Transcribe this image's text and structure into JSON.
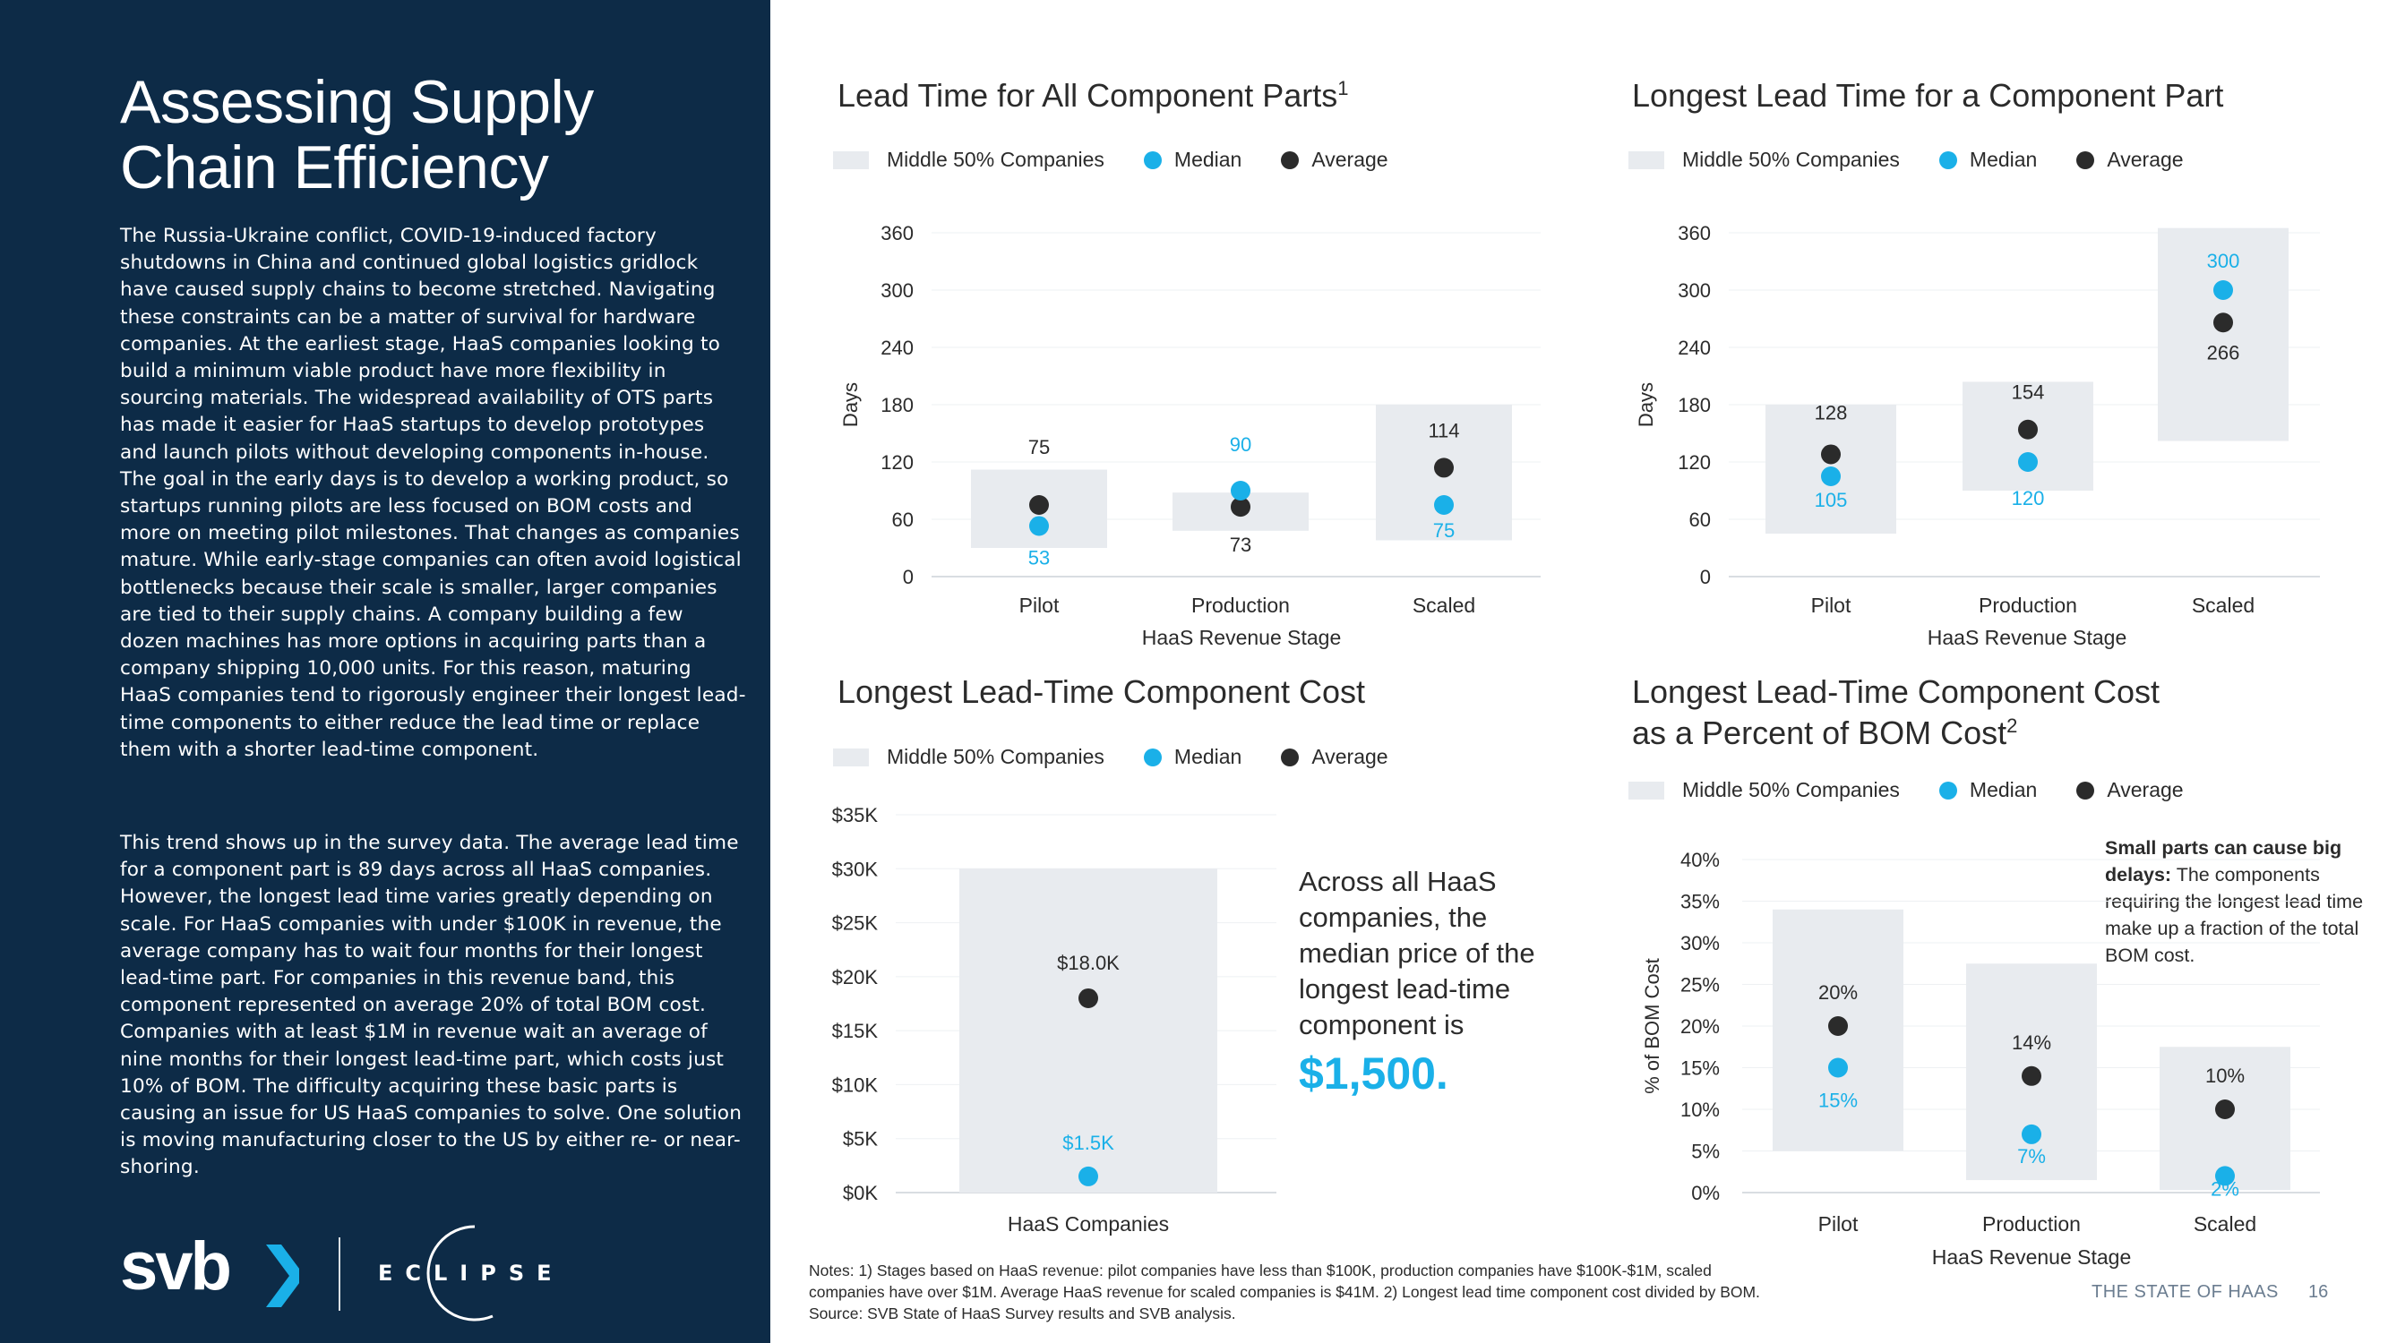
{
  "page": {
    "title": "Assessing Supply Chain Efficiency",
    "paragraphs": [
      "The Russia-Ukraine conflict, COVID-19-induced factory shutdowns in China and continued global logistics gridlock have caused supply chains to become stretched. Navigating these constraints can be a matter of survival for hardware companies. At the earliest stage, HaaS companies looking to build a minimum viable product have more flexibility in sourcing materials. The widespread availability of OTS parts has made it easier for HaaS startups to develop prototypes and launch pilots without developing components in-house. The goal in the early days is to develop a working product, so startups running pilots are less focused on BOM costs and more on meeting pilot milestones. That changes as companies mature. While early-stage companies can often avoid logistical bottlenecks because their scale is smaller, larger companies are tied to their supply chains. A company building a few dozen machines has more options in acquiring parts than a company shipping 10,000 units. For this reason, maturing HaaS companies tend to rigorously engineer their longest lead-time components to either reduce the lead time or replace them with a shorter lead-time component.",
      "This trend shows up in the survey data. The average lead time for a component part is 89 days across all HaaS companies. However, the longest lead time varies greatly depending on scale. For HaaS companies with under $100K in revenue, the average company has to wait four months for their longest lead-time part. For companies in this revenue band, this component represented on average 20% of total BOM cost. Companies with at least $1M in revenue wait an average of nine months for their longest lead-time part, which costs just 10% of BOM. The difficulty acquiring these basic parts is causing an issue for US HaaS companies to solve. One solution is moving manufacturing closer to the US by either re- or near-shoring."
    ],
    "logo_text": "svb",
    "partner_logo": "ECLIPSE",
    "footnote_lines": [
      "Notes: 1) Stages based on HaaS revenue: pilot companies have less than $100K, production companies have $100K-$1M, scaled",
      "companies have over $1M. Average HaaS revenue for scaled companies is $41M.  2) Longest lead time component cost divided by BOM.",
      "Source: SVB State of HaaS Survey results and SVB analysis."
    ],
    "footer_label": "THE STATE OF HAAS",
    "page_number": "16"
  },
  "legend": {
    "band": "Middle 50% Companies",
    "median": "Median",
    "average": "Average"
  },
  "colors": {
    "sidebar": "#0d2b47",
    "band": "#e8ebef",
    "median": "#1ab0e8",
    "average": "#2b2b2b",
    "axis": "#d9dde2"
  },
  "callout": {
    "text": "Across all HaaS companies, the median price of the longest lead-time component is",
    "value": "$1,500."
  },
  "side_note": {
    "bold": "Small parts can cause big delays:",
    "text": " The components requiring the longest lead time make up a fraction of the total BOM cost."
  },
  "chart_data": [
    {
      "type": "range-dot",
      "title": "Lead Time for All Component Parts",
      "title_sup": "1",
      "ylabel": "Days",
      "xlabel": "HaaS Revenue Stage",
      "ylim": [
        0,
        360
      ],
      "yticks": [
        "0",
        "60",
        "120",
        "180",
        "240",
        "300",
        "360"
      ],
      "ytick_values": [
        0,
        60,
        120,
        180,
        240,
        300,
        360
      ],
      "categories": [
        "Pilot",
        "Production",
        "Scaled"
      ],
      "band_low": [
        30,
        48,
        38
      ],
      "band_high": [
        112,
        88,
        180
      ],
      "median": [
        53,
        90,
        75
      ],
      "average": [
        75,
        73,
        114
      ],
      "median_labels": [
        "53",
        "90",
        "75"
      ],
      "average_labels": [
        "75",
        "73",
        "114"
      ]
    },
    {
      "type": "range-dot",
      "title": "Longest Lead Time for a Component Part",
      "ylabel": "Days",
      "xlabel": "HaaS Revenue Stage",
      "ylim": [
        0,
        360
      ],
      "yticks": [
        "0",
        "60",
        "120",
        "180",
        "240",
        "300",
        "360"
      ],
      "ytick_values": [
        0,
        60,
        120,
        180,
        240,
        300,
        360
      ],
      "categories": [
        "Pilot",
        "Production",
        "Scaled"
      ],
      "band_low": [
        45,
        90,
        142
      ],
      "band_high": [
        180,
        204,
        365
      ],
      "median": [
        105,
        120,
        300
      ],
      "average": [
        128,
        154,
        266
      ],
      "median_labels": [
        "105",
        "120",
        "300"
      ],
      "average_labels": [
        "128",
        "154",
        "266"
      ]
    },
    {
      "type": "range-dot",
      "title": "Longest Lead-Time Component Cost",
      "xlabel": "",
      "ylim": [
        0,
        35000
      ],
      "yticks": [
        "$0K",
        "$5K",
        "$10K",
        "$15K",
        "$20K",
        "$25K",
        "$30K",
        "$35K"
      ],
      "ytick_values": [
        0,
        5000,
        10000,
        15000,
        20000,
        25000,
        30000,
        35000
      ],
      "categories": [
        "HaaS Companies"
      ],
      "band_low": [
        0
      ],
      "band_high": [
        30000
      ],
      "median": [
        1500
      ],
      "average": [
        18000
      ],
      "median_labels": [
        "$1.5K"
      ],
      "average_labels": [
        "$18.0K"
      ]
    },
    {
      "type": "range-dot",
      "title": "Longest Lead-Time Component Cost",
      "title_line2": "as a Percent of BOM Cost",
      "title_sup": "2",
      "ylabel": "% of BOM Cost",
      "xlabel": "HaaS Revenue Stage",
      "ylim": [
        0,
        40
      ],
      "yticks": [
        "0%",
        "5%",
        "10%",
        "15%",
        "20%",
        "25%",
        "30%",
        "35%",
        "40%"
      ],
      "ytick_values": [
        0,
        5,
        10,
        15,
        20,
        25,
        30,
        35,
        40
      ],
      "categories": [
        "Pilot",
        "Production",
        "Scaled"
      ],
      "band_low": [
        5,
        1.5,
        0.3
      ],
      "band_high": [
        34,
        27.5,
        17.5
      ],
      "median": [
        15,
        7,
        2
      ],
      "average": [
        20,
        14,
        10
      ],
      "median_labels": [
        "15%",
        "7%",
        "2%"
      ],
      "average_labels": [
        "20%",
        "14%",
        "10%"
      ]
    }
  ]
}
